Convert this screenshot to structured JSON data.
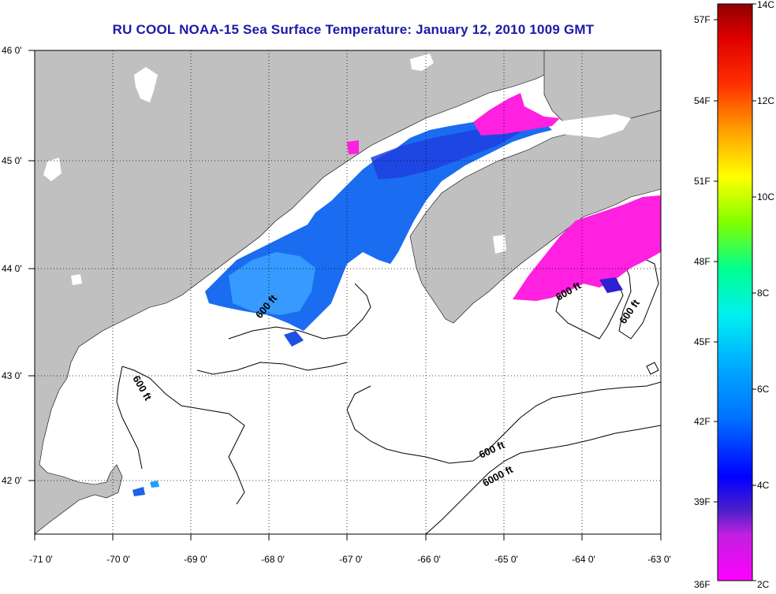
{
  "title": "RU COOL  NOAA-15  Sea Surface Temperature:  January 12, 2010 1009 GMT",
  "map": {
    "lon_ticks": [
      "-71 0'",
      "-70 0'",
      "-69 0'",
      "-68 0'",
      "-67 0'",
      "-66 0'",
      "-65 0'",
      "-64 0'",
      "-63 0'"
    ],
    "lat_ticks": [
      "46 0'",
      "45 0'",
      "44 0'",
      "43 0'",
      "42 0'"
    ],
    "contour_labels": [
      "600 ft",
      "600 ft",
      "600 ft",
      "600 ft",
      "600 ft",
      "6000 ft"
    ],
    "land_color": "#c0c0c0",
    "ocean_color": "#ffffff"
  },
  "colorbar": {
    "fahrenheit_labels": [
      "57F",
      "54F",
      "51F",
      "48F",
      "45F",
      "42F",
      "39F",
      "36F"
    ],
    "celsius_labels": [
      "14C",
      "12C",
      "10C",
      "8C",
      "6C",
      "4C",
      "2C"
    ]
  }
}
